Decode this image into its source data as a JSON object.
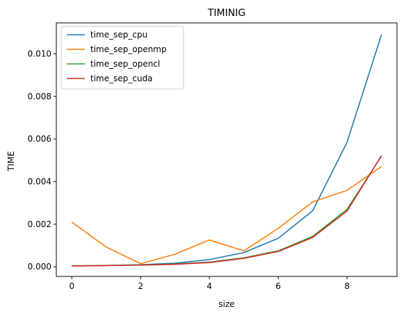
{
  "chart_data": {
    "type": "line",
    "title": "TIMINIG",
    "xlabel": "size",
    "ylabel": "TIME",
    "x": [
      0,
      1,
      2,
      3,
      4,
      5,
      6,
      7,
      8,
      9
    ],
    "xlim": [
      -0.45,
      9.45
    ],
    "ylim": [
      -0.00045,
      0.01145
    ],
    "xticks": [
      0,
      2,
      4,
      6,
      8
    ],
    "xtick_labels": [
      "0",
      "2",
      "4",
      "6",
      "8"
    ],
    "yticks": [
      0.0,
      0.002,
      0.004,
      0.006,
      0.008,
      0.01
    ],
    "ytick_labels": [
      "0.000",
      "0.002",
      "0.004",
      "0.006",
      "0.008",
      "0.010"
    ],
    "grid": false,
    "legend_position": "top-left",
    "series": [
      {
        "name": "time_sep_cpu",
        "color": "#1f77b4",
        "values": [
          5e-05,
          6e-05,
          0.0001,
          0.00017,
          0.00034,
          0.00067,
          0.00134,
          0.00263,
          0.00585,
          0.0109
        ]
      },
      {
        "name": "time_sep_openmp",
        "color": "#ff7f0e",
        "values": [
          0.0021,
          0.00093,
          0.00015,
          0.00059,
          0.00126,
          0.00075,
          0.00181,
          0.00305,
          0.00359,
          0.00471
        ]
      },
      {
        "name": "time_sep_opencl",
        "color": "#2ca02c",
        "values": [
          4e-05,
          6e-05,
          9e-05,
          0.00013,
          0.00022,
          0.00042,
          0.00075,
          0.00143,
          0.0027,
          0.0052
        ]
      },
      {
        "name": "time_sep_cuda",
        "color": "#d62728",
        "values": [
          4e-05,
          6e-05,
          8e-05,
          0.00012,
          0.0002,
          0.0004,
          0.00072,
          0.00138,
          0.00262,
          0.00522
        ]
      }
    ]
  }
}
